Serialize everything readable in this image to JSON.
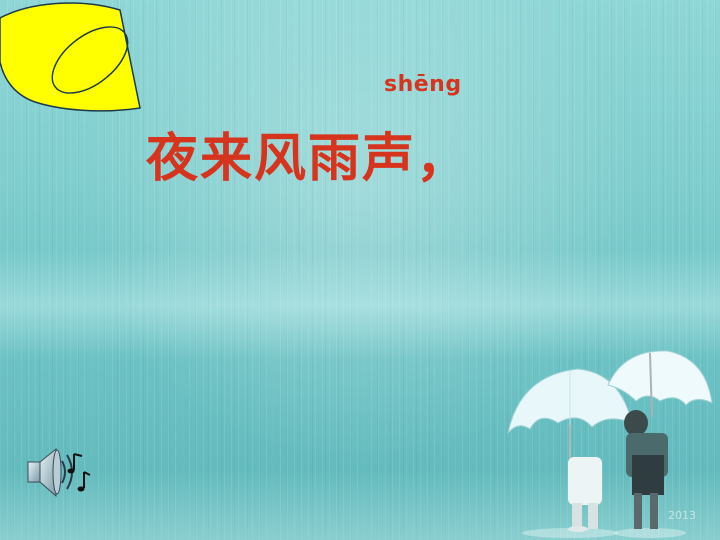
{
  "slide": {
    "pinyin": "shēng",
    "poem_line": "夜来风雨声，",
    "watermark": "2013"
  },
  "icons": {
    "sound": "speaker-with-music-notes-icon"
  },
  "colors": {
    "text_red": "#d6341c",
    "background_teal": "#7fcdcd",
    "logo_yellow": "#ffff00"
  }
}
